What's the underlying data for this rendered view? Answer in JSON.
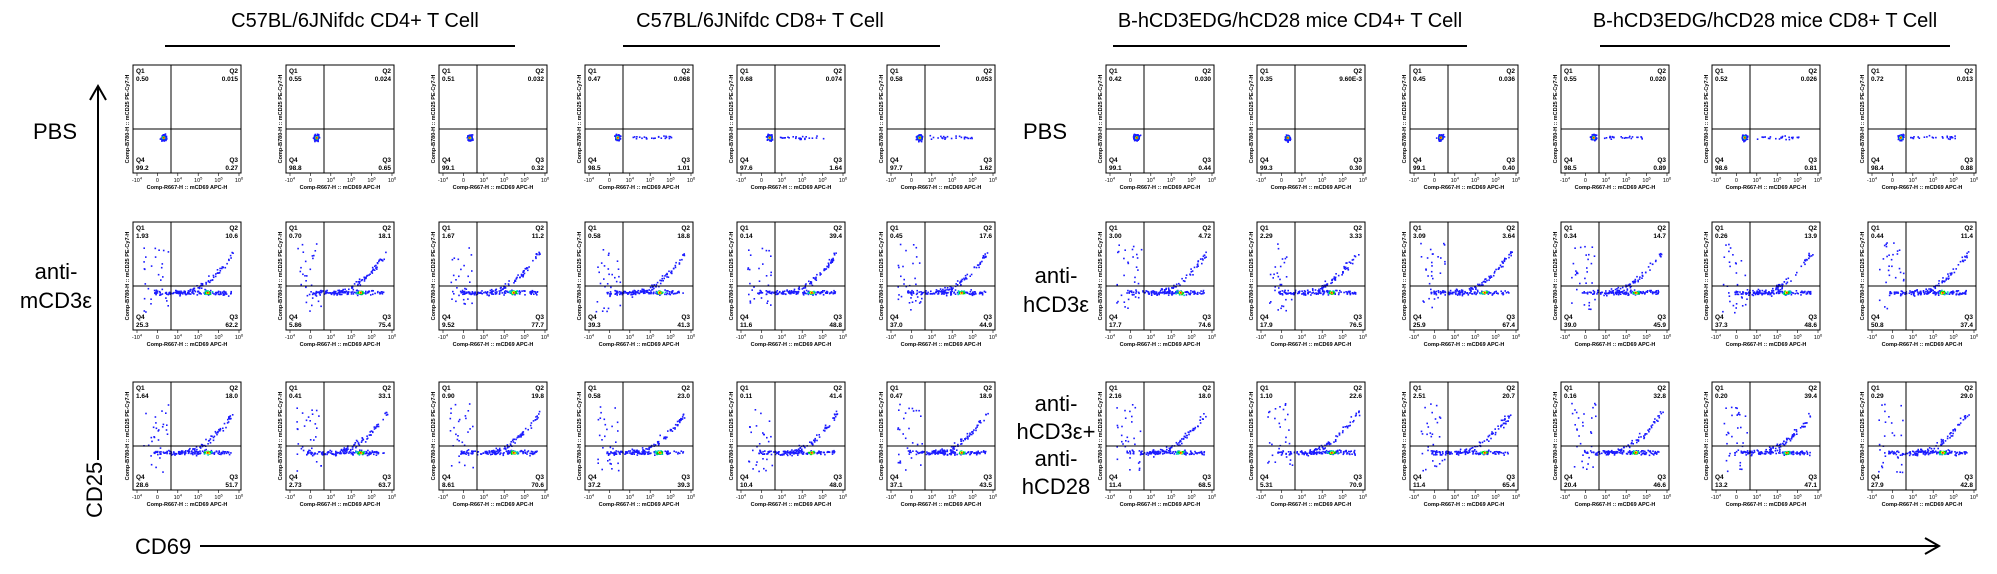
{
  "titles": [
    "C57BL/6JNifdc CD4+ T Cell",
    "C57BL/6JNifdc CD8+ T Cell",
    "B-hCD3EDG/hCD28 mice CD4+ T Cell",
    "B-hCD3EDG/hCD28 mice CD8+ T Cell"
  ],
  "row_labels_left": [
    "PBS",
    "anti-\nmCD3ε"
  ],
  "row_labels_right": [
    "PBS",
    "anti-\nhCD3ε",
    "anti-\nhCD3ε+\nanti-\nhCD28"
  ],
  "y_axis_label": "CD25",
  "x_axis_label": "CD69",
  "plot_text": {
    "x_title": "Comp-R667-H :: mCD69 APC-H",
    "y_title": "Comp-B780-H :: mCD25 PE-Cy7-H",
    "quadrant_names": [
      "Q1",
      "Q2",
      "Q3",
      "Q4"
    ],
    "x_ticks": [
      "-10",
      "0",
      "10",
      "10",
      "10",
      "10"
    ],
    "x_tick_exponents": [
      "4",
      "",
      "4",
      "5",
      "6",
      "6"
    ]
  },
  "colors": {
    "low": "#1a1aff",
    "mid": "#00c8c8",
    "midhigh": "#00d000",
    "high": "#ffff00",
    "peak": "#ff2000"
  },
  "chart_data": {
    "type": "scatter",
    "kind": "flow cytometry quadrant plots",
    "rows": [
      "PBS",
      "anti-CD3ε",
      "anti-CD3ε+anti-CD28"
    ],
    "groups": [
      "C57BL/6JNifdc CD4+ T Cell",
      "C57BL/6JNifdc CD8+ T Cell",
      "B-hCD3EDG/hCD28 mice CD4+ T Cell",
      "B-hCD3EDG/hCD28 mice CD8+ T Cell"
    ],
    "replicates_per_group": 3,
    "quadrants_order": [
      "Q1",
      "Q2",
      "Q3",
      "Q4"
    ],
    "values": [
      [
        [
          [
            "0.50",
            "0.015",
            "0.27",
            "99.2"
          ],
          [
            "0.55",
            "0.024",
            "0.65",
            "98.8"
          ],
          [
            "0.51",
            "0.032",
            "0.32",
            "99.1"
          ]
        ],
        [
          [
            "0.47",
            "0.068",
            "1.01",
            "98.5"
          ],
          [
            "0.68",
            "0.074",
            "1.64",
            "97.6"
          ],
          [
            "0.58",
            "0.053",
            "1.62",
            "97.7"
          ]
        ],
        [
          [
            "0.42",
            "0.030",
            "0.44",
            "99.1"
          ],
          [
            "0.35",
            "9.60E-3",
            "0.30",
            "99.3"
          ],
          [
            "0.45",
            "0.036",
            "0.40",
            "99.1"
          ]
        ],
        [
          [
            "0.55",
            "0.020",
            "0.89",
            "98.5"
          ],
          [
            "0.52",
            "0.026",
            "0.81",
            "98.6"
          ],
          [
            "0.72",
            "0.013",
            "0.88",
            "98.4"
          ]
        ]
      ],
      [
        [
          [
            "1.93",
            "10.6",
            "62.2",
            "25.3"
          ],
          [
            "0.70",
            "18.1",
            "75.4",
            "5.86"
          ],
          [
            "1.67",
            "11.2",
            "77.7",
            "9.52"
          ]
        ],
        [
          [
            "0.58",
            "18.8",
            "41.3",
            "39.3"
          ],
          [
            "0.14",
            "39.4",
            "48.8",
            "11.6"
          ],
          [
            "0.45",
            "17.6",
            "44.9",
            "37.0"
          ]
        ],
        [
          [
            "3.00",
            "4.72",
            "74.6",
            "17.7"
          ],
          [
            "2.29",
            "3.33",
            "76.5",
            "17.9"
          ],
          [
            "3.09",
            "3.64",
            "67.4",
            "25.9"
          ]
        ],
        [
          [
            "0.34",
            "14.7",
            "45.9",
            "39.0"
          ],
          [
            "0.26",
            "13.9",
            "48.6",
            "37.3"
          ],
          [
            "0.44",
            "11.4",
            "37.4",
            "50.8"
          ]
        ]
      ],
      [
        [
          [
            "1.64",
            "18.0",
            "51.7",
            "28.6"
          ],
          [
            "0.41",
            "33.1",
            "63.7",
            "2.73"
          ],
          [
            "0.90",
            "19.8",
            "70.6",
            "8.61"
          ]
        ],
        [
          [
            "0.58",
            "23.0",
            "39.3",
            "37.2"
          ],
          [
            "0.11",
            "41.4",
            "48.0",
            "10.4"
          ],
          [
            "0.47",
            "18.9",
            "43.5",
            "37.1"
          ]
        ],
        [
          [
            "2.16",
            "18.0",
            "68.5",
            "11.4"
          ],
          [
            "1.10",
            "22.6",
            "70.9",
            "5.31"
          ],
          [
            "2.51",
            "20.7",
            "65.4",
            "11.4"
          ]
        ],
        [
          [
            "0.16",
            "32.8",
            "46.6",
            "20.4"
          ],
          [
            "0.20",
            "39.4",
            "47.1",
            "13.2"
          ],
          [
            "0.29",
            "29.0",
            "42.8",
            "27.9"
          ]
        ]
      ]
    ]
  }
}
